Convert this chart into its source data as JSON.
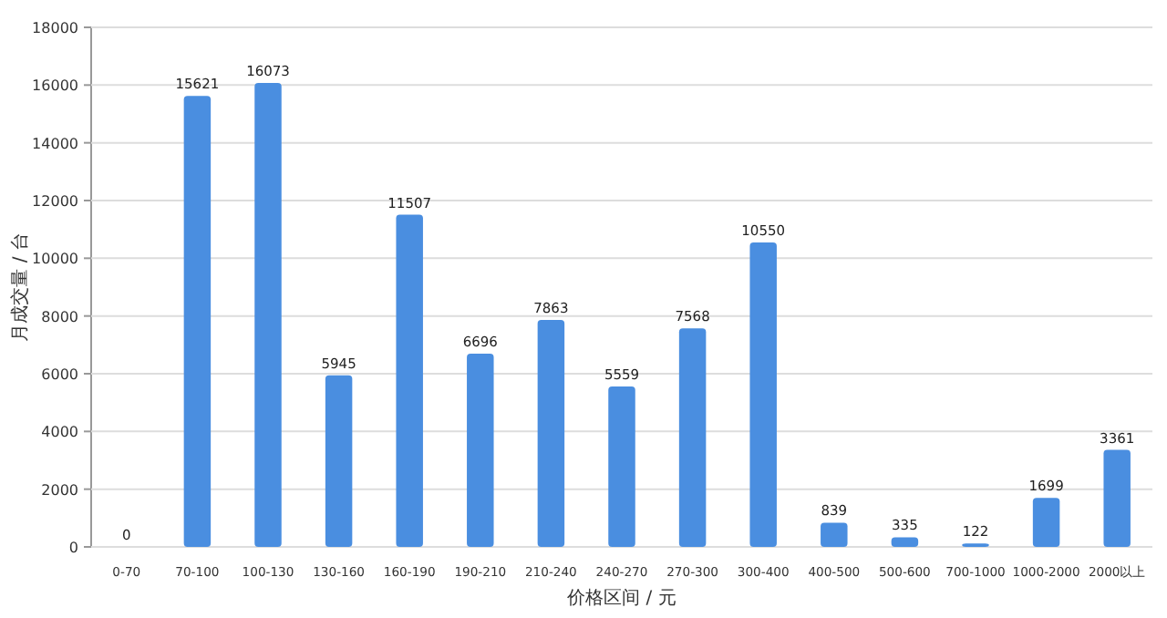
{
  "chart_data": {
    "type": "bar",
    "xlabel": "价格区间 / 元",
    "ylabel": "月成交量 / 台",
    "categories": [
      "0-70",
      "70-100",
      "100-130",
      "130-160",
      "160-190",
      "190-210",
      "210-240",
      "240-270",
      "270-300",
      "300-400",
      "400-500",
      "500-600",
      "700-1000",
      "1000-2000",
      "2000以上"
    ],
    "values": [
      0,
      15621,
      16073,
      5945,
      11507,
      6696,
      7863,
      5559,
      7568,
      10550,
      839,
      335,
      122,
      1699,
      3361
    ],
    "color": "#4a8ee0",
    "ylim": [
      0,
      18000
    ],
    "yticks": [
      0,
      2000,
      4000,
      6000,
      8000,
      10000,
      12000,
      14000,
      16000,
      18000
    ],
    "grid": "y",
    "data_labels": true
  }
}
